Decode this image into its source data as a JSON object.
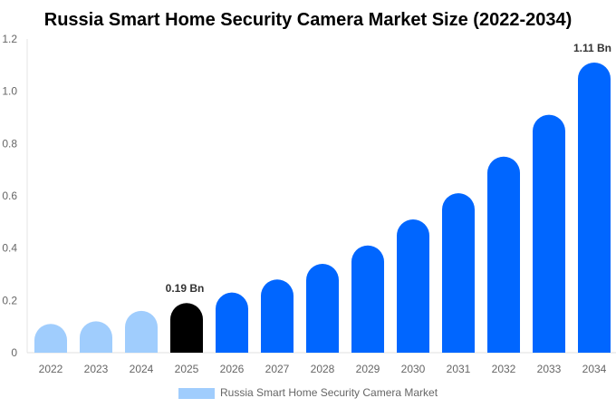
{
  "chart_data": {
    "type": "bar",
    "title": "Russia Smart Home Security Camera Market Size (2022-2034)",
    "categories": [
      "2022",
      "2023",
      "2024",
      "2025",
      "2026",
      "2027",
      "2028",
      "2029",
      "2030",
      "2031",
      "2032",
      "2033",
      "2034"
    ],
    "series": [
      {
        "name": "Russia Smart Home Security Camera Market",
        "values": [
          0.11,
          0.12,
          0.16,
          0.19,
          0.23,
          0.28,
          0.34,
          0.41,
          0.51,
          0.61,
          0.75,
          0.91,
          1.11
        ]
      }
    ],
    "data_labels": [
      {
        "category": "2025",
        "text": "0.19 Bn"
      },
      {
        "category": "2034",
        "text": "1.11 Bn"
      }
    ],
    "ylim": [
      0,
      1.2
    ],
    "yticks": [
      "0",
      "0.2",
      "0.4",
      "0.6",
      "0.8",
      "1.0",
      "1.2"
    ],
    "grid": false,
    "legend": "bottom",
    "colors": {
      "historical": "#a0cdfd",
      "current": "#000000",
      "forecast": "#0066ff"
    },
    "xlabel": "",
    "ylabel": ""
  }
}
